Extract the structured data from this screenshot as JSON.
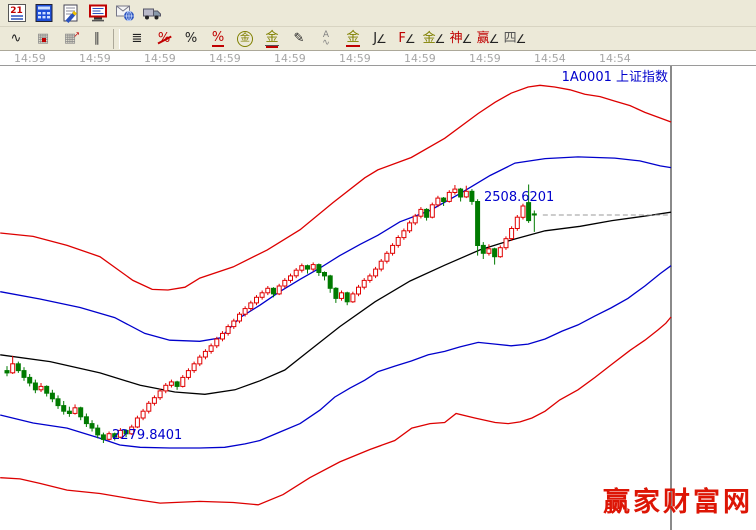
{
  "toolbar_row1": {
    "items": [
      {
        "name": "calendar-icon"
      },
      {
        "name": "calculator-icon"
      },
      {
        "name": "notes-icon"
      },
      {
        "name": "monitor-icon"
      },
      {
        "name": "mail-globe-icon"
      },
      {
        "name": "truck-icon"
      }
    ]
  },
  "toolbar_row2": {
    "items": [
      {
        "name": "polyline-tool",
        "glyph": "∿",
        "color": "#202020"
      },
      {
        "name": "grid-tool",
        "glyph": "▦",
        "color": "#8a8a8a",
        "extra": "dot"
      },
      {
        "name": "grid-shift-tool",
        "glyph": "▦",
        "color": "#8a8a8a",
        "extra": "arrow"
      },
      {
        "name": "parallel-channel-tool",
        "glyph": "∥",
        "color": "#404040"
      },
      {
        "sep": true
      },
      {
        "name": "scale-ruler-tool",
        "glyph": "≣",
        "color": "#202020"
      },
      {
        "name": "percent-retrace-tool",
        "glyph": "%",
        "color": "#c00000",
        "extra": "strike"
      },
      {
        "name": "percent-tool",
        "glyph": "%",
        "color": "#202020"
      },
      {
        "name": "percent-lines-tool",
        "glyph": "%",
        "color": "#c00000",
        "extra": "underline"
      },
      {
        "name": "gold-circle-tool",
        "glyph": "金",
        "color": "#808000",
        "extra": "circle"
      },
      {
        "name": "gold-lines-tool",
        "glyph": "金",
        "color": "#808000",
        "extra": "lines"
      },
      {
        "name": "brush-tool",
        "glyph": "✎",
        "color": "#202020"
      },
      {
        "name": "elliott-wave-tool",
        "glyph": "A",
        "color": "#808080",
        "extra": "wave"
      },
      {
        "name": "gold-underline-tool",
        "glyph": "金",
        "color": "#808000",
        "extra": "underline"
      },
      {
        "name": "j-channel-tool",
        "glyph": "J",
        "color": "#202020",
        "extra": "angle"
      },
      {
        "name": "f-channel-tool",
        "glyph": "F",
        "color": "#c00000",
        "extra": "angle"
      },
      {
        "name": "gold-channel-tool",
        "glyph": "金",
        "color": "#808000",
        "extra": "angle"
      },
      {
        "name": "shen-channel-tool",
        "glyph": "神",
        "color": "#c00000",
        "extra": "angle"
      },
      {
        "name": "ying-channel-tool",
        "glyph": "赢",
        "color": "#c00000",
        "extra": "angle"
      },
      {
        "name": "si-channel-tool",
        "glyph": "四",
        "color": "#555555",
        "extra": "angle"
      }
    ]
  },
  "time_axis": {
    "labels": [
      "14:59",
      "14:59",
      "14:59",
      "14:59",
      "14:59",
      "14:59",
      "14:59",
      "14:59",
      "14:54",
      "14:54"
    ]
  },
  "chart": {
    "symbol_label": "1A0001 上证指数",
    "high_label": "2508.6201",
    "low_label": "2279.8401",
    "watermark": "赢家财富网",
    "colors": {
      "up": "#e00000",
      "down": "#007a00",
      "band_outer": "#dd0000",
      "band_inner": "#0000cc",
      "band_mid": "#000000",
      "label_blue": "#0000cc",
      "dashed": "#9a9a9a",
      "border": "#8a8a8a",
      "watermark_red": "#dd1505"
    }
  },
  "chart_data": {
    "type": "candlestick",
    "ylim": [
      2203,
      2595
    ],
    "high_annotation": {
      "index": 79,
      "price": 2508.6201
    },
    "low_annotation": {
      "index": 17,
      "price": 2279.8401
    },
    "dashed_line": {
      "price": 2482,
      "from_index": 94.5,
      "to_index": 116.6
    },
    "candles": [
      [
        2344,
        2348,
        2339,
        2342
      ],
      [
        2342,
        2357,
        2341,
        2350
      ],
      [
        2350,
        2352,
        2342,
        2344
      ],
      [
        2344,
        2347,
        2335,
        2338
      ],
      [
        2338,
        2341,
        2330,
        2333
      ],
      [
        2333,
        2336,
        2324,
        2327
      ],
      [
        2327,
        2333,
        2325,
        2330
      ],
      [
        2330,
        2331,
        2321,
        2324
      ],
      [
        2324,
        2327,
        2316,
        2319
      ],
      [
        2319,
        2322,
        2310,
        2313
      ],
      [
        2313,
        2317,
        2305,
        2308
      ],
      [
        2308,
        2312,
        2303,
        2306
      ],
      [
        2306,
        2314,
        2305,
        2311
      ],
      [
        2311,
        2312,
        2300,
        2303
      ],
      [
        2303,
        2306,
        2294,
        2297
      ],
      [
        2297,
        2300,
        2290,
        2293
      ],
      [
        2293,
        2296,
        2284,
        2287
      ],
      [
        2287,
        2289,
        2279.8,
        2283
      ],
      [
        2283,
        2290,
        2282,
        2288
      ],
      [
        2288,
        2289,
        2282,
        2285
      ],
      [
        2285,
        2293,
        2284,
        2291
      ],
      [
        2291,
        2292,
        2285,
        2288
      ],
      [
        2288,
        2296,
        2287,
        2294
      ],
      [
        2294,
        2304,
        2293,
        2302
      ],
      [
        2302,
        2310,
        2300,
        2308
      ],
      [
        2308,
        2317,
        2306,
        2315
      ],
      [
        2315,
        2322,
        2313,
        2320
      ],
      [
        2320,
        2328,
        2318,
        2326
      ],
      [
        2326,
        2333,
        2324,
        2331
      ],
      [
        2331,
        2336,
        2329,
        2334
      ],
      [
        2334,
        2335,
        2327,
        2330
      ],
      [
        2330,
        2340,
        2329,
        2338
      ],
      [
        2338,
        2346,
        2336,
        2344
      ],
      [
        2344,
        2352,
        2342,
        2350
      ],
      [
        2350,
        2358,
        2348,
        2356
      ],
      [
        2356,
        2363,
        2354,
        2361
      ],
      [
        2361,
        2368,
        2359,
        2366
      ],
      [
        2366,
        2374,
        2364,
        2372
      ],
      [
        2372,
        2379,
        2370,
        2377
      ],
      [
        2377,
        2385,
        2375,
        2383
      ],
      [
        2383,
        2390,
        2381,
        2388
      ],
      [
        2388,
        2396,
        2386,
        2394
      ],
      [
        2394,
        2401,
        2392,
        2399
      ],
      [
        2399,
        2406,
        2397,
        2404
      ],
      [
        2404,
        2411,
        2402,
        2409
      ],
      [
        2409,
        2415,
        2407,
        2413
      ],
      [
        2413,
        2419,
        2411,
        2417
      ],
      [
        2417,
        2418,
        2409,
        2412
      ],
      [
        2412,
        2421,
        2411,
        2419
      ],
      [
        2419,
        2426,
        2417,
        2424
      ],
      [
        2424,
        2430,
        2422,
        2428
      ],
      [
        2428,
        2435,
        2426,
        2433
      ],
      [
        2433,
        2439,
        2431,
        2437
      ],
      [
        2437,
        2438,
        2430,
        2434
      ],
      [
        2434,
        2440,
        2432,
        2438
      ],
      [
        2438,
        2439,
        2428,
        2431
      ],
      [
        2431,
        2432,
        2424,
        2428
      ],
      [
        2428,
        2429,
        2413,
        2417
      ],
      [
        2417,
        2418,
        2404,
        2408
      ],
      [
        2408,
        2415,
        2406,
        2413
      ],
      [
        2413,
        2414,
        2402,
        2405
      ],
      [
        2405,
        2414,
        2404,
        2412
      ],
      [
        2412,
        2420,
        2410,
        2418
      ],
      [
        2418,
        2426,
        2416,
        2424
      ],
      [
        2424,
        2430,
        2422,
        2428
      ],
      [
        2428,
        2436,
        2426,
        2434
      ],
      [
        2434,
        2443,
        2432,
        2441
      ],
      [
        2441,
        2450,
        2439,
        2448
      ],
      [
        2448,
        2457,
        2446,
        2455
      ],
      [
        2455,
        2464,
        2453,
        2462
      ],
      [
        2462,
        2470,
        2460,
        2468
      ],
      [
        2468,
        2477,
        2466,
        2475
      ],
      [
        2475,
        2483,
        2473,
        2481
      ],
      [
        2481,
        2489,
        2479,
        2487
      ],
      [
        2487,
        2488,
        2477,
        2480
      ],
      [
        2480,
        2493,
        2479,
        2491
      ],
      [
        2491,
        2499,
        2489,
        2497
      ],
      [
        2497,
        2498,
        2490,
        2494
      ],
      [
        2494,
        2504,
        2493,
        2502
      ],
      [
        2502,
        2508.6,
        2500,
        2505
      ],
      [
        2505,
        2506,
        2494,
        2498
      ],
      [
        2498,
        2508,
        2497,
        2503
      ],
      [
        2503,
        2505,
        2491,
        2494
      ],
      [
        2494,
        2496,
        2446,
        2455
      ],
      [
        2455,
        2458,
        2443,
        2448
      ],
      [
        2448,
        2456,
        2446,
        2452
      ],
      [
        2452,
        2453,
        2438,
        2445
      ],
      [
        2445,
        2455,
        2444,
        2453
      ],
      [
        2453,
        2463,
        2451,
        2461
      ],
      [
        2461,
        2472,
        2459,
        2470
      ],
      [
        2470,
        2482,
        2468,
        2480
      ],
      [
        2480,
        2492,
        2478,
        2490
      ],
      [
        2493,
        2509,
        2475,
        2477
      ],
      [
        2483,
        2486,
        2467,
        2482
      ]
    ],
    "bands": {
      "upper_red": [
        [
          -1.2,
          2466
        ],
        [
          4.6,
          2463
        ],
        [
          10.6,
          2455
        ],
        [
          16.4,
          2445
        ],
        [
          22.2,
          2424
        ],
        [
          25.6,
          2416
        ],
        [
          28.4,
          2415.5
        ],
        [
          31.4,
          2418
        ],
        [
          34,
          2426
        ],
        [
          39.9,
          2436
        ],
        [
          45.9,
          2451
        ],
        [
          51.7,
          2469
        ],
        [
          57.5,
          2493
        ],
        [
          63.1,
          2515
        ],
        [
          65.4,
          2522
        ],
        [
          71.3,
          2533
        ],
        [
          77.2,
          2550
        ],
        [
          83.1,
          2572
        ],
        [
          86.1,
          2582
        ],
        [
          88.9,
          2590
        ],
        [
          91.9,
          2595.5
        ],
        [
          94,
          2597
        ],
        [
          96.6,
          2595.5
        ],
        [
          99.3,
          2593
        ],
        [
          101.9,
          2589
        ],
        [
          104.6,
          2587
        ],
        [
          107.2,
          2583
        ],
        [
          109.9,
          2579
        ],
        [
          112.5,
          2573
        ],
        [
          115.2,
          2568
        ],
        [
          117.1,
          2564.5
        ]
      ],
      "upper_blue": [
        [
          -1.2,
          2414
        ],
        [
          5.8,
          2407.5
        ],
        [
          12.9,
          2400
        ],
        [
          19,
          2391
        ],
        [
          24.3,
          2377
        ],
        [
          28.7,
          2371
        ],
        [
          34,
          2370
        ],
        [
          37.6,
          2373
        ],
        [
          41.1,
          2391
        ],
        [
          44.6,
          2402
        ],
        [
          48.1,
          2414
        ],
        [
          51.7,
          2425
        ],
        [
          55.2,
          2435
        ],
        [
          58.7,
          2446
        ],
        [
          62.3,
          2456
        ],
        [
          65.4,
          2464
        ],
        [
          69.3,
          2476
        ],
        [
          74.6,
          2486
        ],
        [
          79.9,
          2501
        ],
        [
          85.2,
          2517
        ],
        [
          89.6,
          2528
        ],
        [
          94.9,
          2532
        ],
        [
          100.7,
          2533.5
        ],
        [
          107.2,
          2532.5
        ],
        [
          111.6,
          2530
        ],
        [
          115.2,
          2525.5
        ],
        [
          117.1,
          2524
        ]
      ],
      "middle": [
        [
          -1.2,
          2358
        ],
        [
          7.6,
          2352
        ],
        [
          16.4,
          2342
        ],
        [
          23.5,
          2331
        ],
        [
          29.6,
          2325
        ],
        [
          34.9,
          2323
        ],
        [
          40.2,
          2327
        ],
        [
          44.6,
          2335
        ],
        [
          49,
          2344.5
        ],
        [
          53.4,
          2362
        ],
        [
          58.7,
          2383
        ],
        [
          64.9,
          2405
        ],
        [
          71.1,
          2423.5
        ],
        [
          77.2,
          2437.5
        ],
        [
          83.4,
          2451
        ],
        [
          89.1,
          2460
        ],
        [
          94.9,
          2468
        ],
        [
          101.1,
          2472
        ],
        [
          106.7,
          2477
        ],
        [
          112.5,
          2481
        ],
        [
          117.1,
          2484.5
        ]
      ],
      "lower_blue": [
        [
          -1.2,
          2304.6
        ],
        [
          4.6,
          2297.5
        ],
        [
          10.6,
          2293
        ],
        [
          16.4,
          2284
        ],
        [
          19.9,
          2278
        ],
        [
          23.5,
          2276
        ],
        [
          28.7,
          2275.4
        ],
        [
          34,
          2275.4
        ],
        [
          38.4,
          2276
        ],
        [
          42,
          2279
        ],
        [
          44.6,
          2282
        ],
        [
          48.1,
          2289.5
        ],
        [
          51.7,
          2297
        ],
        [
          55.2,
          2309
        ],
        [
          57.8,
          2320.5
        ],
        [
          60.5,
          2328.5
        ],
        [
          63.1,
          2335.5
        ],
        [
          65.4,
          2343
        ],
        [
          68.4,
          2348
        ],
        [
          71.3,
          2352.5
        ],
        [
          74.3,
          2358
        ],
        [
          77.2,
          2361
        ],
        [
          79.9,
          2365
        ],
        [
          83.1,
          2369
        ],
        [
          86.1,
          2367.5
        ],
        [
          88.9,
          2366
        ],
        [
          91.9,
          2367.5
        ],
        [
          94.9,
          2372
        ],
        [
          97.9,
          2379
        ],
        [
          100.7,
          2384.5
        ],
        [
          103.7,
          2392.5
        ],
        [
          106.5,
          2399.5
        ],
        [
          109.5,
          2408
        ],
        [
          112.5,
          2419
        ],
        [
          115.2,
          2430
        ],
        [
          117.1,
          2437
        ]
      ],
      "lower_red": [
        [
          -1.2,
          2249
        ],
        [
          2.3,
          2248
        ],
        [
          5.8,
          2244
        ],
        [
          10.6,
          2238
        ],
        [
          16.4,
          2235
        ],
        [
          22.2,
          2230
        ],
        [
          27,
          2226.5
        ],
        [
          34,
          2228
        ],
        [
          39.9,
          2227
        ],
        [
          44.3,
          2225
        ],
        [
          48.7,
          2234
        ],
        [
          53.4,
          2249
        ],
        [
          58.7,
          2263
        ],
        [
          64,
          2274
        ],
        [
          68.4,
          2282
        ],
        [
          71.4,
          2293
        ],
        [
          74.6,
          2297
        ],
        [
          77.2,
          2298
        ],
        [
          79.2,
          2306
        ],
        [
          82.5,
          2302
        ],
        [
          86.1,
          2298
        ],
        [
          88.4,
          2297
        ],
        [
          90.5,
          2298.5
        ],
        [
          92.6,
          2302
        ],
        [
          94.9,
          2308
        ],
        [
          97.5,
          2318
        ],
        [
          100.7,
          2327
        ],
        [
          103.7,
          2338
        ],
        [
          106.5,
          2349
        ],
        [
          109.9,
          2362
        ],
        [
          112.5,
          2371
        ],
        [
          114.8,
          2380
        ],
        [
          116.2,
          2386
        ],
        [
          117.1,
          2391.5
        ]
      ]
    }
  }
}
